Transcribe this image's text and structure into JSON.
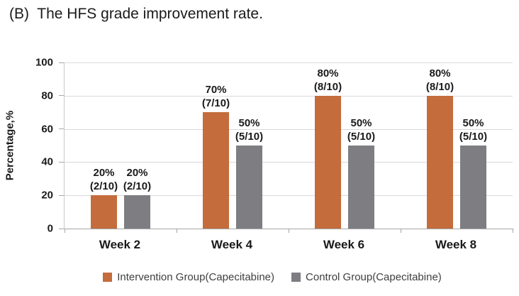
{
  "title": "(B)  The HFS grade improvement rate.",
  "chart_data": {
    "type": "bar",
    "title": "(B) The HFS grade improvement rate.",
    "categories": [
      "Week 2",
      "Week 4",
      "Week 6",
      "Week 8"
    ],
    "series": [
      {
        "name": "Intervention Group(Capecitabine)",
        "color": "#C46C3C",
        "values": [
          20,
          70,
          80,
          80
        ],
        "bar_labels": [
          [
            "20%",
            "(2/10)"
          ],
          [
            "70%",
            "(7/10)"
          ],
          [
            "80%",
            "(8/10)"
          ],
          [
            "80%",
            "(8/10)"
          ]
        ]
      },
      {
        "name": "Control Group(Capecitabine)",
        "color": "#7D7D82",
        "values": [
          20,
          50,
          50,
          50
        ],
        "bar_labels": [
          [
            "20%",
            "(2/10)"
          ],
          [
            "50%",
            "(5/10)"
          ],
          [
            "50%",
            "(5/10)"
          ],
          [
            "50%",
            "(5/10)"
          ]
        ]
      }
    ],
    "xlabel": "",
    "ylabel": "Percentage,%",
    "ylim": [
      0,
      100
    ],
    "yticks": [
      0,
      20,
      40,
      60,
      80,
      100
    ],
    "grid": true,
    "legend_position": "bottom"
  },
  "colors": {
    "gridline": "#D9D9D9",
    "axis_line": "#A6A6A6",
    "text": "#1A1A1A",
    "legend_text": "#3F3F3F",
    "background": "#FFFFFF"
  }
}
